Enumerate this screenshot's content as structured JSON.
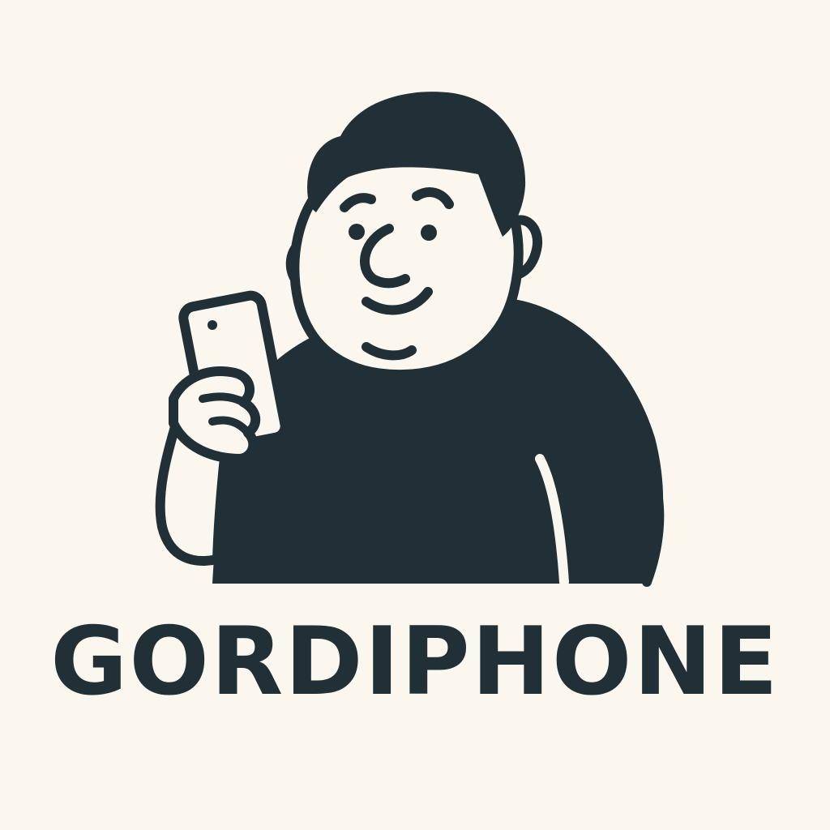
{
  "brand": {
    "name": "GORDIPHONE"
  },
  "colors": {
    "background": "#fbf6ee",
    "ink": "#213036",
    "skin": "#fbf6ee"
  },
  "icons": {
    "mascot": "man-holding-smartphone-icon"
  }
}
